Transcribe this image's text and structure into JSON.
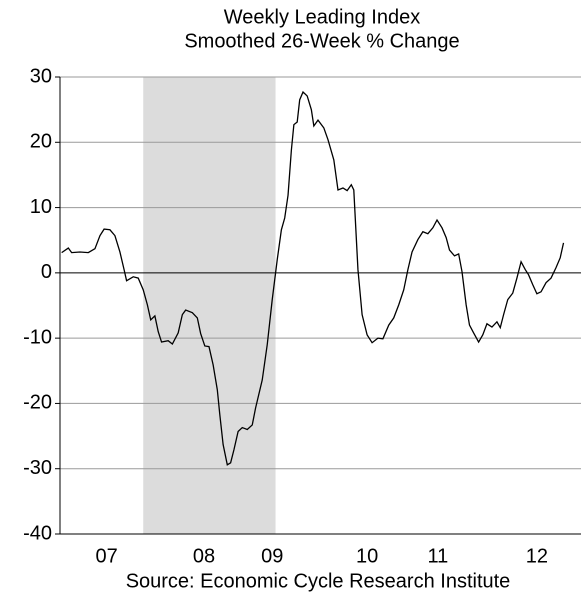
{
  "chart_data": {
    "type": "line",
    "title": "Weekly Leading Index",
    "subtitle": "Smoothed 26-Week % Change",
    "source": "Source: Economic Cycle Research Institute",
    "xlim": [
      2006.77,
      2013.03
    ],
    "ylim": [
      -40,
      30
    ],
    "yticks": [
      30,
      20,
      10,
      0,
      -10,
      -20,
      -30,
      -40
    ],
    "xticks": [
      {
        "value": 2007.33,
        "label": "07"
      },
      {
        "value": 2008.5,
        "label": "08"
      },
      {
        "value": 2009.32,
        "label": "09"
      },
      {
        "value": 2010.46,
        "label": "10"
      },
      {
        "value": 2011.31,
        "label": "11"
      },
      {
        "value": 2012.5,
        "label": "12"
      }
    ],
    "grid": true,
    "shaded_region": [
      2007.77,
      2009.36
    ],
    "shade_color": "#dcdcdc",
    "color": "#000000",
    "x": [
      2006.79,
      2006.87,
      2006.91,
      2007.01,
      2007.11,
      2007.19,
      2007.25,
      2007.3,
      2007.37,
      2007.43,
      2007.49,
      2007.54,
      2007.57,
      2007.65,
      2007.71,
      2007.77,
      2007.82,
      2007.86,
      2007.91,
      2007.95,
      2007.99,
      2008.07,
      2008.12,
      2008.19,
      2008.24,
      2008.28,
      2008.36,
      2008.42,
      2008.46,
      2008.51,
      2008.56,
      2008.61,
      2008.66,
      2008.69,
      2008.73,
      2008.78,
      2008.82,
      2008.86,
      2008.91,
      2008.96,
      2009.02,
      2009.08,
      2009.12,
      2009.2,
      2009.26,
      2009.32,
      2009.38,
      2009.43,
      2009.47,
      2009.51,
      2009.55,
      2009.58,
      2009.62,
      2009.65,
      2009.69,
      2009.74,
      2009.79,
      2009.82,
      2009.87,
      2009.94,
      2009.99,
      2010.06,
      2010.11,
      2010.17,
      2010.22,
      2010.27,
      2010.3,
      2010.35,
      2010.4,
      2010.46,
      2010.52,
      2010.59,
      2010.65,
      2010.72,
      2010.78,
      2010.84,
      2010.9,
      2010.95,
      2011.0,
      2011.07,
      2011.13,
      2011.19,
      2011.25,
      2011.3,
      2011.36,
      2011.41,
      2011.45,
      2011.51,
      2011.56,
      2011.6,
      2011.65,
      2011.69,
      2011.74,
      2011.8,
      2011.85,
      2011.9,
      2011.96,
      2012.02,
      2012.06,
      2012.1,
      2012.15,
      2012.21,
      2012.26,
      2012.31,
      2012.36,
      2012.4,
      2012.45,
      2012.5,
      2012.55,
      2012.61,
      2012.67,
      2012.73,
      2012.78,
      2012.82
    ],
    "values": [
      3.1,
      3.8,
      3.1,
      3.2,
      3.1,
      3.7,
      5.7,
      6.7,
      6.6,
      5.7,
      3.2,
      0.5,
      -1.2,
      -0.6,
      -0.8,
      -2.6,
      -4.9,
      -7.2,
      -6.6,
      -9.0,
      -10.6,
      -10.4,
      -10.9,
      -9.2,
      -6.4,
      -5.7,
      -6.1,
      -6.9,
      -9.3,
      -11.2,
      -11.3,
      -14.1,
      -17.9,
      -21.7,
      -26.3,
      -29.4,
      -29.1,
      -27.1,
      -24.3,
      -23.7,
      -24.0,
      -23.3,
      -20.7,
      -16.4,
      -11.0,
      -4.1,
      2.0,
      6.6,
      8.4,
      11.9,
      18.8,
      22.7,
      23.1,
      26.5,
      27.7,
      27.1,
      25.0,
      22.5,
      23.4,
      22.2,
      20.4,
      17.3,
      12.7,
      13.0,
      12.6,
      13.5,
      12.7,
      0.5,
      -6.4,
      -9.5,
      -10.7,
      -10.0,
      -10.1,
      -8.0,
      -6.9,
      -4.9,
      -2.6,
      0.5,
      3.2,
      5.1,
      6.3,
      6.0,
      6.9,
      8.1,
      6.9,
      5.4,
      3.5,
      2.6,
      2.9,
      0.2,
      -4.9,
      -8.0,
      -9.2,
      -10.6,
      -9.5,
      -7.8,
      -8.3,
      -7.5,
      -8.4,
      -6.4,
      -4.1,
      -3.1,
      -0.8,
      1.7,
      0.5,
      -0.3,
      -1.8,
      -3.2,
      -2.9,
      -1.5,
      -0.8,
      0.8,
      2.3,
      4.6
    ]
  }
}
